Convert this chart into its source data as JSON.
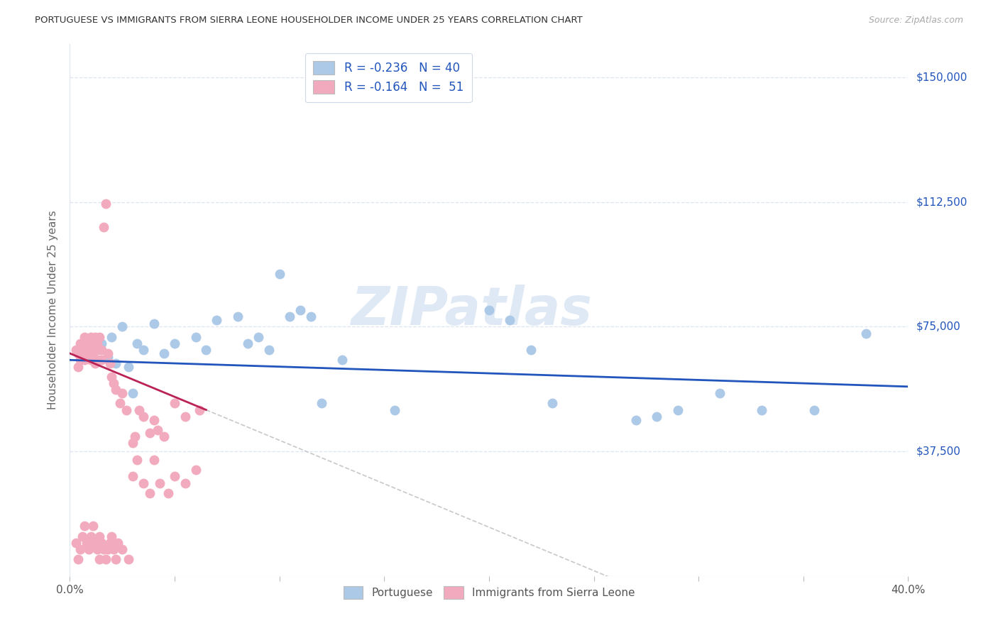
{
  "title": "PORTUGUESE VS IMMIGRANTS FROM SIERRA LEONE HOUSEHOLDER INCOME UNDER 25 YEARS CORRELATION CHART",
  "source": "Source: ZipAtlas.com",
  "ylabel": "Householder Income Under 25 years",
  "xlim": [
    0.0,
    0.4
  ],
  "ylim": [
    0,
    160000
  ],
  "xticks": [
    0.0,
    0.05,
    0.1,
    0.15,
    0.2,
    0.25,
    0.3,
    0.35,
    0.4
  ],
  "xticklabels": [
    "0.0%",
    "",
    "",
    "",
    "",
    "",
    "",
    "",
    "40.0%"
  ],
  "yticks": [
    0,
    37500,
    75000,
    112500,
    150000
  ],
  "yticklabels": [
    "",
    "$37,500",
    "$75,000",
    "$112,500",
    "$150,000"
  ],
  "legend1_label": "R = -0.236   N = 40",
  "legend2_label": "R = -0.164   N =  51",
  "watermark": "ZIPatlas",
  "blue_color": "#adc9e8",
  "pink_color": "#f2abbe",
  "line_blue": "#2255bb",
  "line_pink": "#bb2255",
  "line_dashed_color": "#c8c8c8",
  "right_label_color": "#2255bb",
  "grid_color": "#dde5f0",
  "portuguese_x": [
    0.005,
    0.01,
    0.012,
    0.015,
    0.018,
    0.02,
    0.022,
    0.025,
    0.028,
    0.03,
    0.032,
    0.035,
    0.04,
    0.045,
    0.05,
    0.06,
    0.065,
    0.07,
    0.08,
    0.085,
    0.09,
    0.095,
    0.1,
    0.105,
    0.11,
    0.115,
    0.12,
    0.13,
    0.155,
    0.2,
    0.21,
    0.22,
    0.23,
    0.27,
    0.28,
    0.29,
    0.31,
    0.33,
    0.355,
    0.38
  ],
  "portuguese_y": [
    67000,
    68000,
    65000,
    70000,
    66000,
    72000,
    64000,
    75000,
    63000,
    55000,
    70000,
    68000,
    76000,
    67000,
    70000,
    72000,
    68000,
    77000,
    78000,
    70000,
    72000,
    68000,
    91000,
    78000,
    80000,
    78000,
    52000,
    65000,
    50000,
    80000,
    77000,
    68000,
    52000,
    47000,
    48000,
    50000,
    55000,
    50000,
    50000,
    73000
  ],
  "sierra_leone_x": [
    0.003,
    0.004,
    0.004,
    0.005,
    0.005,
    0.005,
    0.006,
    0.006,
    0.007,
    0.007,
    0.007,
    0.008,
    0.008,
    0.008,
    0.009,
    0.009,
    0.01,
    0.01,
    0.01,
    0.011,
    0.011,
    0.012,
    0.012,
    0.012,
    0.013,
    0.013,
    0.014,
    0.014,
    0.015,
    0.015,
    0.016,
    0.017,
    0.018,
    0.019,
    0.02,
    0.021,
    0.022,
    0.024,
    0.025,
    0.027,
    0.03,
    0.031,
    0.033,
    0.035,
    0.038,
    0.04,
    0.042,
    0.045,
    0.05,
    0.055,
    0.062
  ],
  "sierra_leone_y": [
    68000,
    67000,
    63000,
    65000,
    68000,
    70000,
    67000,
    70000,
    65000,
    68000,
    72000,
    66000,
    69000,
    71000,
    67000,
    70000,
    65000,
    68000,
    72000,
    67000,
    70000,
    68000,
    64000,
    72000,
    65000,
    70000,
    68000,
    72000,
    65000,
    68000,
    105000,
    112000,
    67000,
    64000,
    60000,
    58000,
    56000,
    52000,
    55000,
    50000,
    40000,
    42000,
    50000,
    48000,
    43000,
    47000,
    44000,
    42000,
    52000,
    48000,
    50000
  ],
  "sierra_leone_low_x": [
    0.003,
    0.004,
    0.005,
    0.006,
    0.007,
    0.008,
    0.009,
    0.01,
    0.011,
    0.012,
    0.013,
    0.014,
    0.014,
    0.015,
    0.016,
    0.017,
    0.018,
    0.019,
    0.02,
    0.021,
    0.022,
    0.023,
    0.025,
    0.028,
    0.03,
    0.032,
    0.035,
    0.038,
    0.04,
    0.043,
    0.047,
    0.05,
    0.055,
    0.06
  ],
  "sierra_leone_low_y": [
    10000,
    5000,
    8000,
    12000,
    15000,
    10000,
    8000,
    12000,
    15000,
    10000,
    8000,
    5000,
    12000,
    10000,
    8000,
    5000,
    8000,
    10000,
    12000,
    8000,
    5000,
    10000,
    8000,
    5000,
    30000,
    35000,
    28000,
    25000,
    35000,
    28000,
    25000,
    30000,
    28000,
    32000
  ]
}
